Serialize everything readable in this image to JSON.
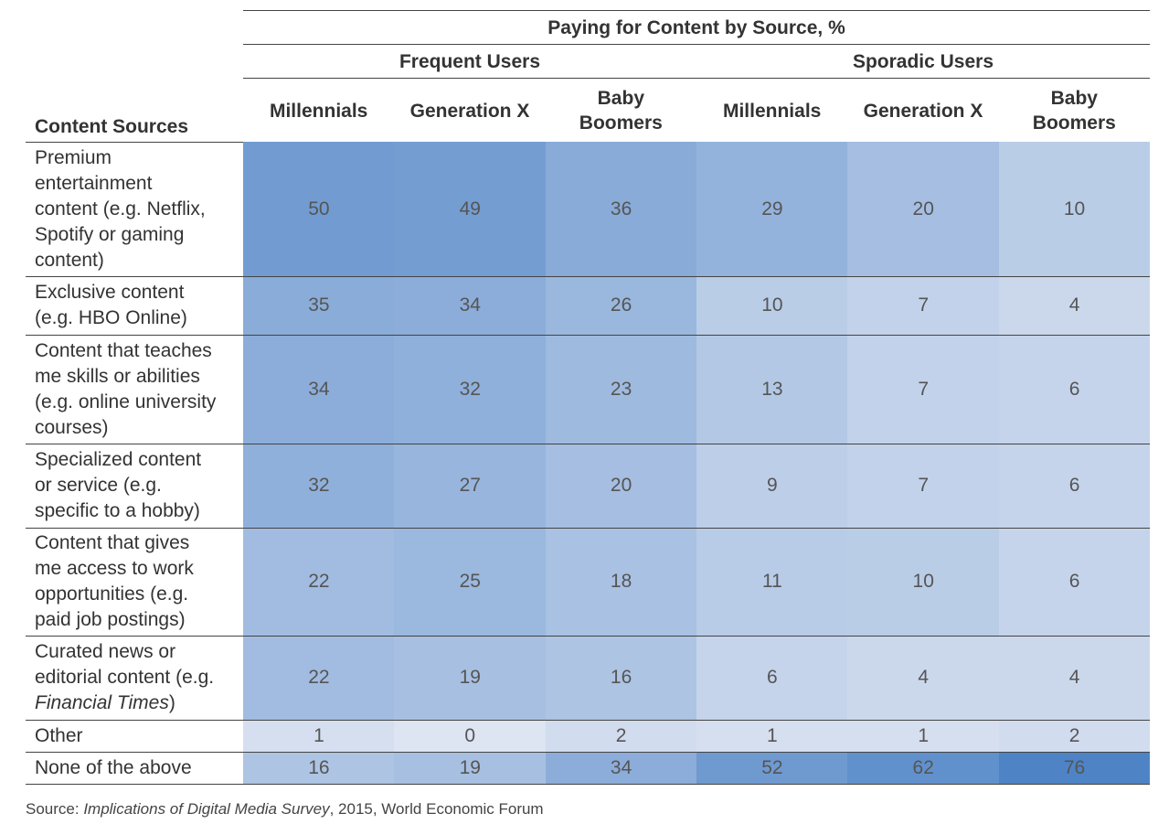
{
  "header": {
    "title": "Paying for Content by Source, %",
    "group_frequent": "Frequent Users",
    "group_sporadic": "Sporadic Users",
    "row_header": "Content Sources",
    "columns": [
      "Millennials",
      "Generation X",
      "Baby Boomers",
      "Millennials",
      "Generation X",
      "Baby Boomers"
    ],
    "col_lines": [
      [
        "Millennials"
      ],
      [
        "Generation X"
      ],
      [
        "Baby",
        "Boomers"
      ],
      [
        "Millennials"
      ],
      [
        "Generation X"
      ],
      [
        "Baby",
        "Boomers"
      ]
    ]
  },
  "chart_data": {
    "type": "table",
    "title": "Paying for Content by Source, %",
    "row_header": "Content Sources",
    "groups": [
      "Frequent Users",
      "Sporadic Users"
    ],
    "columns": [
      "Millennials",
      "Generation X",
      "Baby Boomers",
      "Millennials",
      "Generation X",
      "Baby Boomers"
    ],
    "rows": [
      {
        "label_lines": [
          "Premium",
          "entertainment",
          "content (e.g. Netflix,",
          "Spotify or gaming",
          "content)"
        ],
        "values": [
          50,
          49,
          36,
          29,
          20,
          10
        ]
      },
      {
        "label_lines": [
          "Exclusive content",
          "(e.g. HBO Online)"
        ],
        "values": [
          35,
          34,
          26,
          10,
          7,
          4
        ]
      },
      {
        "label_lines": [
          "Content that teaches",
          "me skills or abilities",
          "(e.g. online university",
          "courses)"
        ],
        "values": [
          34,
          32,
          23,
          13,
          7,
          6
        ]
      },
      {
        "label_lines": [
          "Specialized content",
          "or service (e.g.",
          "specific to a hobby)"
        ],
        "values": [
          32,
          27,
          20,
          9,
          7,
          6
        ]
      },
      {
        "label_lines": [
          "Content that gives",
          "me access to work",
          "opportunities (e.g.",
          "paid job postings)"
        ],
        "values": [
          22,
          25,
          18,
          11,
          10,
          6
        ]
      },
      {
        "label_lines": [
          "Curated news or",
          "editorial content (e.g.",
          "Financial Times)"
        ],
        "italic_phrase": "Financial Times",
        "values": [
          22,
          19,
          16,
          6,
          4,
          4
        ]
      },
      {
        "label_lines": [
          "Other"
        ],
        "values": [
          1,
          0,
          2,
          1,
          1,
          2
        ]
      },
      {
        "label_lines": [
          "None of the above"
        ],
        "values": [
          16,
          19,
          34,
          52,
          62,
          76
        ]
      }
    ],
    "color_scale": {
      "low": "#dde4f2",
      "high": "#4e84c6"
    }
  },
  "source": {
    "prefix": "Source: ",
    "title": "Implications of Digital Media Survey",
    "suffix": ", 2015, World Economic Forum"
  }
}
